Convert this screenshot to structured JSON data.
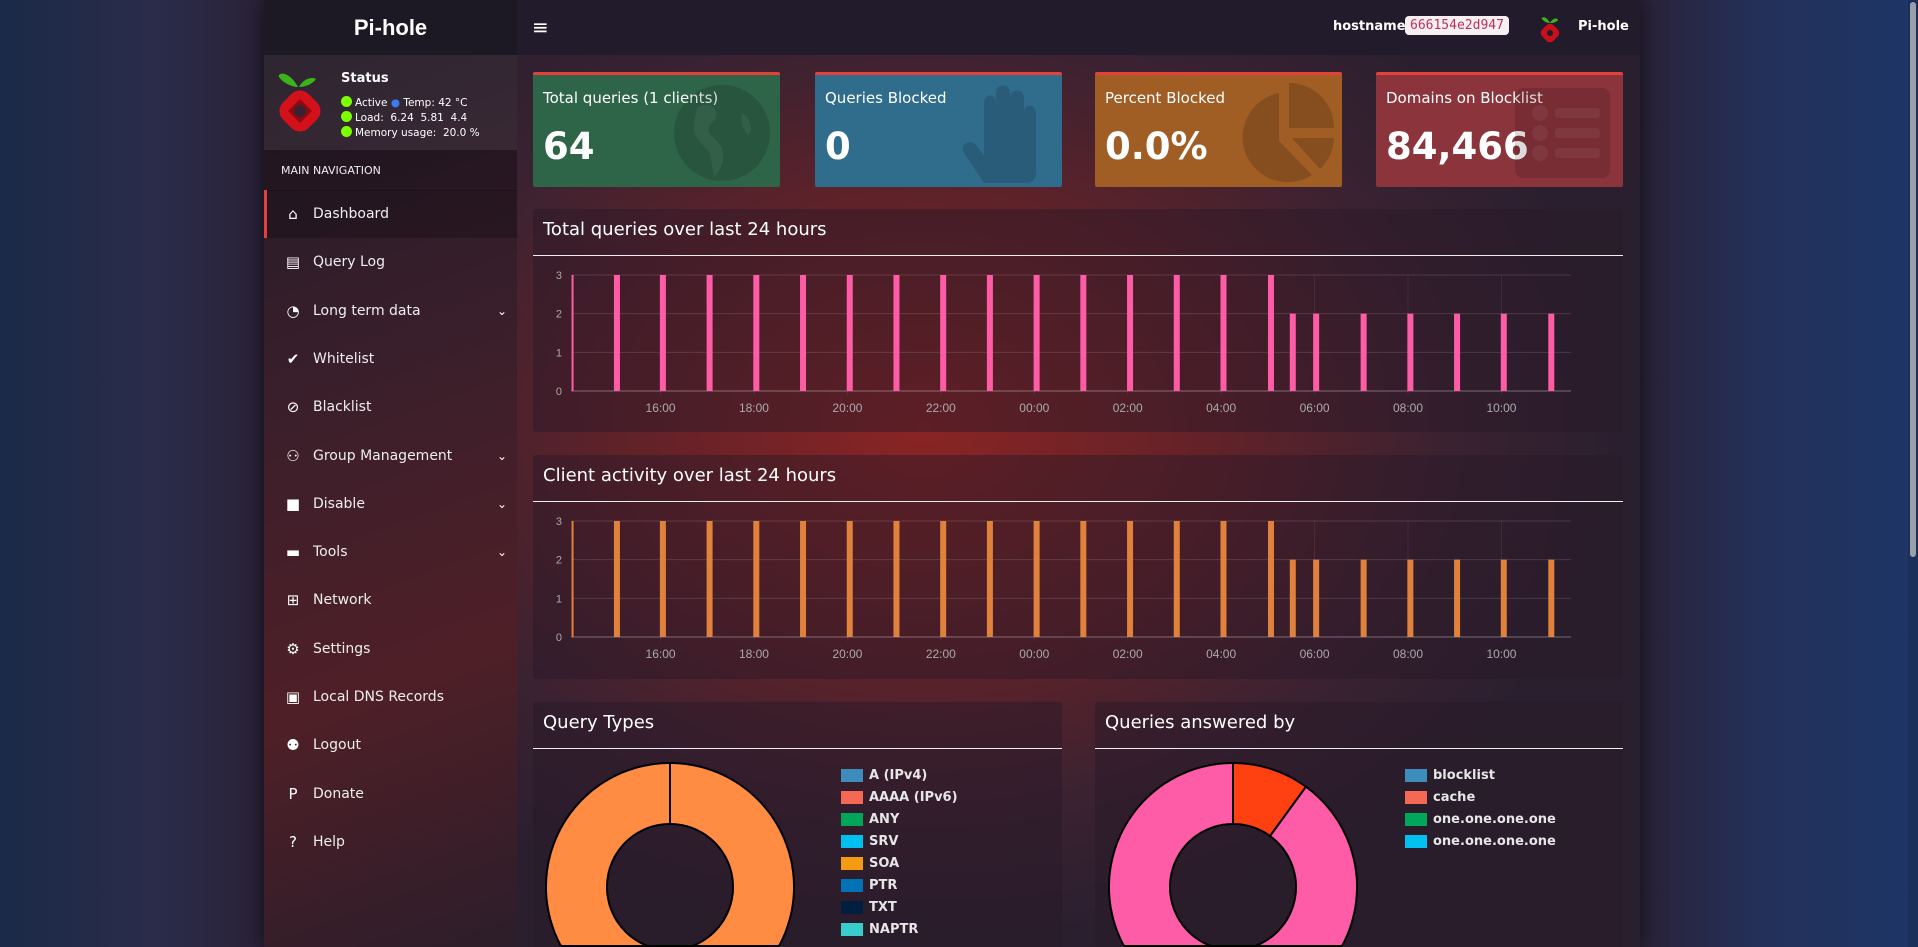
{
  "brand": "Pi-hole",
  "header": {
    "menu_icon": "hamburger-icon",
    "hostname_label": "hostname:",
    "hostname": "666154e2d947",
    "user": "Pi-hole"
  },
  "status": {
    "title": "Status",
    "active": "Active",
    "temp": "Temp: 42 °C",
    "load": "Load:  6.24  5.81  4.4",
    "memory": "Memory usage:  20.0 %",
    "dot_color": "#7cff00"
  },
  "sidebar": {
    "section": "MAIN NAVIGATION",
    "items": [
      {
        "label": "Dashboard",
        "icon": "home-icon",
        "active": true
      },
      {
        "label": "Query Log",
        "icon": "file-icon"
      },
      {
        "label": "Long term data",
        "icon": "clock-icon",
        "expandable": true
      },
      {
        "label": "Whitelist",
        "icon": "check-circle-icon"
      },
      {
        "label": "Blacklist",
        "icon": "ban-icon"
      },
      {
        "label": "Group Management",
        "icon": "users-cog-icon",
        "expandable": true
      },
      {
        "label": "Disable",
        "icon": "stop-icon",
        "expandable": true
      },
      {
        "label": "Tools",
        "icon": "folder-icon",
        "expandable": true
      },
      {
        "label": "Network",
        "icon": "network-icon"
      },
      {
        "label": "Settings",
        "icon": "cogs-icon"
      },
      {
        "label": "Local DNS Records",
        "icon": "address-book-icon"
      },
      {
        "label": "Logout",
        "icon": "user-times-icon"
      },
      {
        "label": "Donate",
        "icon": "paypal-icon"
      },
      {
        "label": "Help",
        "icon": "question-circle-icon"
      }
    ]
  },
  "cards": [
    {
      "title": "Total queries (1 clients)",
      "value": "64",
      "color": "#2e6447",
      "icon": "globe-icon"
    },
    {
      "title": "Queries Blocked",
      "value": "0",
      "color": "#306c8c",
      "icon": "hand-icon"
    },
    {
      "title": "Percent Blocked",
      "value": "0.0%",
      "color": "#a05d24",
      "icon": "pie-chart-icon"
    },
    {
      "title": "Domains on Blocklist",
      "value": "84,466",
      "color": "#8c343c",
      "icon": "list-icon"
    }
  ],
  "chart_data": [
    {
      "type": "bar",
      "title": "Total queries over last 24 hours",
      "color": "#ff5ca8",
      "x": [
        "14:07",
        "15:04",
        "16:03",
        "17:03",
        "18:03",
        "19:03",
        "20:03",
        "21:03",
        "22:03",
        "23:03",
        "00:03",
        "01:03",
        "02:03",
        "03:03",
        "04:03",
        "05:04",
        "05:32",
        "06:02",
        "07:03",
        "08:03",
        "09:03",
        "10:03",
        "11:04"
      ],
      "values": [
        3,
        3,
        3,
        3,
        3,
        3,
        3,
        3,
        3,
        3,
        3,
        3,
        3,
        3,
        3,
        3,
        2,
        2,
        2,
        2,
        2,
        2,
        2
      ],
      "yticks": [
        "0",
        "1",
        "2",
        "3"
      ],
      "ylim": [
        0,
        3
      ],
      "xlim": [
        "14:05",
        "11:55"
      ],
      "xticks": [
        "16:00",
        "18:00",
        "20:00",
        "22:00",
        "00:00",
        "02:00",
        "04:00",
        "06:00",
        "08:00",
        "10:00"
      ],
      "grid": true
    },
    {
      "type": "bar",
      "title": "Client activity over last 24 hours",
      "color": "#e0823c",
      "x": [
        "14:07",
        "15:04",
        "16:03",
        "17:03",
        "18:03",
        "19:03",
        "20:03",
        "21:03",
        "22:03",
        "23:03",
        "00:03",
        "01:03",
        "02:03",
        "03:03",
        "04:03",
        "05:04",
        "05:32",
        "06:02",
        "07:03",
        "08:03",
        "09:03",
        "10:03",
        "11:04"
      ],
      "values": [
        3,
        3,
        3,
        3,
        3,
        3,
        3,
        3,
        3,
        3,
        3,
        3,
        3,
        3,
        3,
        3,
        2,
        2,
        2,
        2,
        2,
        2,
        2
      ],
      "yticks": [
        "0",
        "1",
        "2",
        "3"
      ],
      "ylim": [
        0,
        3
      ],
      "xlim": [
        "14:05",
        "11:55"
      ],
      "xticks": [
        "16:00",
        "18:00",
        "20:00",
        "22:00",
        "00:00",
        "02:00",
        "04:00",
        "06:00",
        "08:00",
        "10:00"
      ],
      "grid": true
    },
    {
      "type": "pie",
      "title": "Query Types",
      "slices": [
        {
          "value": 100,
          "color": "#ff8c42"
        }
      ],
      "legend": [
        {
          "label": "A (IPv4)",
          "color": "#3c8dbc"
        },
        {
          "label": "AAAA (IPv6)",
          "color": "#f56954"
        },
        {
          "label": "ANY",
          "color": "#00a65a"
        },
        {
          "label": "SRV",
          "color": "#00c0ef"
        },
        {
          "label": "SOA",
          "color": "#f39c12"
        },
        {
          "label": "PTR",
          "color": "#0073b7"
        },
        {
          "label": "TXT",
          "color": "#001f3f"
        },
        {
          "label": "NAPTR",
          "color": "#39cccc"
        }
      ]
    },
    {
      "type": "pie",
      "title": "Queries answered by",
      "slices": [
        {
          "value": 90,
          "color": "#ff5ca8"
        },
        {
          "value": 10,
          "color": "#ff4010"
        }
      ],
      "legend": [
        {
          "label": "blocklist",
          "color": "#3c8dbc"
        },
        {
          "label": "cache",
          "color": "#f56954"
        },
        {
          "label": "one.one.one.one",
          "color": "#00a65a"
        },
        {
          "label": "one.one.one.one",
          "color": "#00c0ef"
        }
      ]
    }
  ]
}
